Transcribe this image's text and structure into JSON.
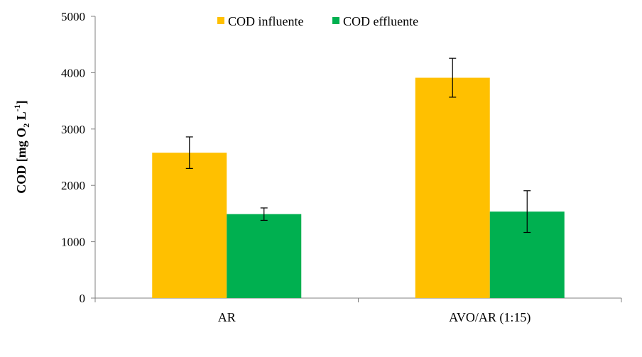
{
  "chart_data": {
    "type": "bar",
    "categories": [
      "AR",
      "AVO/AR (1:15)"
    ],
    "series": [
      {
        "name": "COD influente",
        "color": "#FFC000",
        "values": [
          2580,
          3910
        ],
        "errors": [
          280,
          345
        ]
      },
      {
        "name": "COD effluente",
        "color": "#00B050",
        "values": [
          1490,
          1535
        ],
        "errors": [
          110,
          370
        ]
      }
    ],
    "ylim": [
      0,
      5000
    ],
    "yticks": [
      0,
      1000,
      2000,
      3000,
      4000,
      5000
    ],
    "ytick_labels": [
      "0",
      "1000",
      "2000",
      "3000",
      "4000",
      "5000"
    ],
    "ylabel": {
      "main": "COD [mg O",
      "sub": "2",
      "mid": " L",
      "sup": "-1",
      "end": "]"
    },
    "xlabel": "",
    "title": "",
    "legend_position": "top-center",
    "grid": false
  }
}
